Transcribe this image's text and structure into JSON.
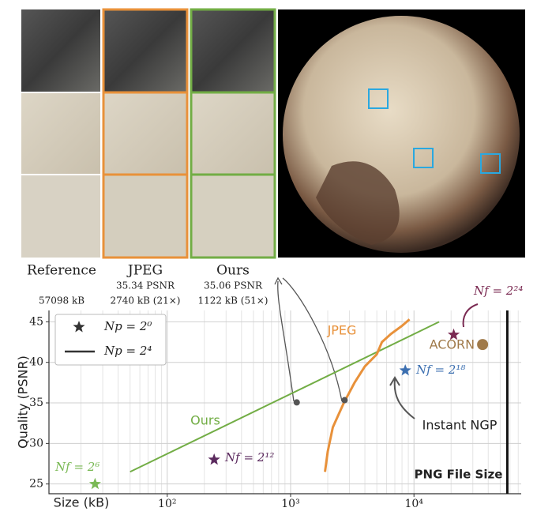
{
  "figure": {
    "columns": [
      {
        "name": "Reference",
        "lines": [
          "57098 kB"
        ]
      },
      {
        "name": "JPEG",
        "lines": [
          "35.34 PSNR",
          "2740 kB (21×)"
        ]
      },
      {
        "name": "Ours",
        "lines": [
          "35.06 PSNR",
          "1122 kB (51×)"
        ]
      }
    ]
  },
  "chart_data": {
    "type": "line",
    "xlabel": "Size (kB)",
    "ylabel": "Quality (PSNR)",
    "log_x": true,
    "grid": true,
    "xlim": [
      11,
      74000
    ],
    "ylim": [
      23.8,
      46.4
    ],
    "xticks": [
      {
        "value": 100,
        "label": "10²"
      },
      {
        "value": 1000,
        "label": "10³"
      },
      {
        "value": 10000,
        "label": "10⁴"
      }
    ],
    "minor_xticks": [
      20,
      30,
      40,
      50,
      60,
      70,
      80,
      90,
      200,
      300,
      400,
      500,
      600,
      700,
      800,
      900,
      2000,
      3000,
      4000,
      5000,
      6000,
      7000,
      8000,
      9000,
      20000,
      30000,
      40000,
      50000,
      60000,
      70000
    ],
    "yticks": [
      25,
      30,
      35,
      40,
      45
    ],
    "series": [
      {
        "name": "Ours",
        "color": "#72ad45",
        "x": [
          50,
          16000
        ],
        "values": [
          26.5,
          45
        ]
      },
      {
        "name": "JPEG",
        "color": "#e8913a",
        "x": [
          1900,
          2000,
          2200,
          2700,
          3300,
          4000,
          5000,
          5500,
          6500,
          8000,
          9200
        ],
        "values": [
          26.5,
          29,
          32,
          35,
          37.5,
          39.5,
          41,
          42.5,
          43.5,
          44.5,
          45.3
        ]
      }
    ],
    "operating_points": [
      {
        "x": 1122,
        "value": 35.06,
        "color": "#555555"
      },
      {
        "x": 2740,
        "value": 35.34,
        "color": "#555555"
      }
    ],
    "stars": [
      {
        "name": "Nf = 2⁶",
        "color": "#7ab955",
        "x": 26,
        "value": 25
      },
      {
        "name": "Nf = 2¹²",
        "color": "#5b2a5e",
        "x": 240,
        "value": 28
      },
      {
        "name": "Nf = 2¹⁸",
        "color": "#3c6fb0",
        "x": 8500,
        "value": 39
      },
      {
        "name": "Nf = 2²⁴",
        "color": "#7a2a52",
        "x": 21000,
        "value": 43.4
      }
    ],
    "acorn": {
      "name": "ACORN",
      "color": "#a07a4a",
      "x": 36000,
      "value": 42.2
    },
    "instant_ngp": "Instant NGP",
    "png_size": {
      "label": "PNG File Size",
      "value": 57098,
      "color": "#111111"
    },
    "legend": [
      {
        "name": "Np = 2⁰",
        "marker": "star"
      },
      {
        "name": "Np = 2⁴",
        "marker": "line"
      }
    ]
  }
}
